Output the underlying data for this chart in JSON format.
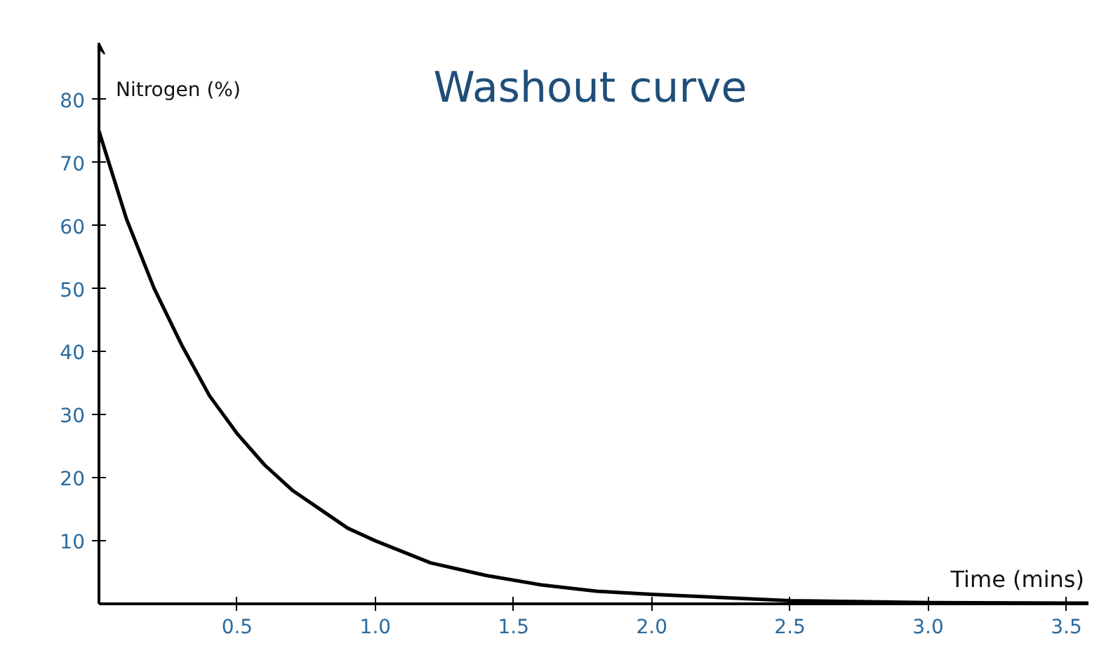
{
  "chart_data": {
    "type": "line",
    "title": "Washout curve",
    "xlabel": "Time (mins)",
    "ylabel": "Nitrogen (%)",
    "x": [
      0,
      0.1,
      0.2,
      0.3,
      0.4,
      0.5,
      0.6,
      0.7,
      0.8,
      0.9,
      1.0,
      1.2,
      1.4,
      1.6,
      1.8,
      2.0,
      2.25,
      2.5,
      3.0,
      3.5,
      3.58
    ],
    "series": [
      {
        "color": "#000000",
        "values": [
          75,
          61,
          50,
          41,
          33,
          27,
          22,
          18,
          15,
          12,
          10,
          6.5,
          4.5,
          3,
          2,
          1.5,
          1,
          0.5,
          0.2,
          0.1,
          0.1
        ]
      }
    ],
    "xlim": [
      0,
      3.58
    ],
    "ylim": [
      0,
      89
    ],
    "xticks": [
      {
        "value": 0.5,
        "label": "0.5"
      },
      {
        "value": 1.0,
        "label": "1.0"
      },
      {
        "value": 1.5,
        "label": "1.5"
      },
      {
        "value": 2.0,
        "label": "2.0"
      },
      {
        "value": 2.5,
        "label": "2.5"
      },
      {
        "value": 3.0,
        "label": "3.0"
      },
      {
        "value": 3.5,
        "label": "3.5"
      }
    ],
    "yticks": [
      10,
      20,
      30,
      40,
      50,
      60,
      70,
      80
    ],
    "grid": false,
    "marker": "none",
    "line_style": "solid"
  }
}
